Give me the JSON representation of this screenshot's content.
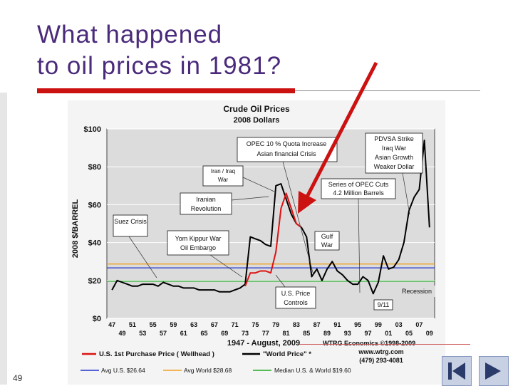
{
  "slide": {
    "title_line1": "What happened",
    "title_line2": "to oil prices in 1981?",
    "page_number": "49"
  },
  "chart_data": {
    "type": "line",
    "title": "Crude Oil Prices",
    "subtitle": "2008 Dollars",
    "ylabel": "2008 $/BARREL",
    "xlabel": "1947 - August, 2009",
    "credit": "WTRG Economics ©1998-2009",
    "credit_web": "www.wtrg.com",
    "credit_phone": "(479) 293-4081",
    "ylim": [
      0,
      100
    ],
    "xlim": [
      1946,
      2010
    ],
    "y_ticks": [
      "$0",
      "$20",
      "$40",
      "$60",
      "$80",
      "$100"
    ],
    "x_ticks_top": [
      "47",
      "51",
      "55",
      "59",
      "63",
      "67",
      "71",
      "75",
      "79",
      "83",
      "87",
      "91",
      "95",
      "99",
      "03",
      "07"
    ],
    "x_ticks_bottom": [
      "49",
      "53",
      "57",
      "61",
      "65",
      "69",
      "73",
      "77",
      "81",
      "85",
      "89",
      "93",
      "97",
      "01",
      "05",
      "09"
    ],
    "series": [
      {
        "name": "U.S. 1st Purchase Price ( Wellhead )",
        "color": "#dd1111",
        "x": [
          1973,
          1974,
          1975,
          1976,
          1977,
          1978,
          1979,
          1980,
          1981,
          1982,
          1983,
          1984
        ],
        "y": [
          17,
          24,
          24,
          25,
          25,
          24,
          35,
          58,
          66,
          58,
          50,
          48
        ]
      },
      {
        "name": "\"World Price\" *",
        "color": "#000000",
        "x": [
          1947,
          1948,
          1949,
          1950,
          1951,
          1952,
          1953,
          1954,
          1955,
          1956,
          1957,
          1958,
          1959,
          1960,
          1961,
          1962,
          1963,
          1964,
          1965,
          1966,
          1967,
          1968,
          1969,
          1970,
          1971,
          1972,
          1973,
          1974,
          1975,
          1976,
          1977,
          1978,
          1979,
          1980,
          1981,
          1982,
          1983,
          1984,
          1985,
          1986,
          1987,
          1988,
          1989,
          1990,
          1991,
          1992,
          1993,
          1994,
          1995,
          1996,
          1997,
          1998,
          1999,
          2000,
          2001,
          2002,
          2003,
          2004,
          2005,
          2006,
          2007,
          2008,
          2009
        ],
        "y": [
          15,
          20,
          19,
          18,
          17,
          17,
          18,
          18,
          18,
          17,
          19,
          18,
          17,
          17,
          16,
          16,
          16,
          15,
          15,
          15,
          15,
          14,
          14,
          14,
          15,
          16,
          18,
          43,
          42,
          41,
          39,
          38,
          70,
          71,
          63,
          55,
          50,
          48,
          43,
          22,
          26,
          20,
          26,
          30,
          25,
          23,
          20,
          18,
          18,
          22,
          20,
          13,
          19,
          33,
          26,
          27,
          31,
          40,
          57,
          64,
          68,
          94,
          48
        ]
      }
    ],
    "reference_lines": [
      {
        "name": "Avg U.S. $26.64",
        "color": "#2233cc",
        "value": 26.64
      },
      {
        "name": "Avg World $28.68",
        "color": "#f0a020",
        "value": 28.68
      },
      {
        "name": "Median U.S. & World $19.60",
        "color": "#22aa22",
        "value": 19.6
      }
    ],
    "annotations": {
      "suez": "Suez Crisis",
      "yom_kippur_line1": "Yom Kippur War",
      "yom_kippur_line2": "Oil Embargo",
      "iranian_line1": "Iranian",
      "iranian_line2": "Revolution",
      "iran_iraq_line1": "Iran / Iraq",
      "iran_iraq_line2": "War",
      "opec_quota_line1": "OPEC 10 % Quota Increase",
      "opec_quota_line2": "Asian financial Crisis",
      "opec_cuts_line1": "Series of OPEC Cuts",
      "opec_cuts_line2": "4.2 Million Barrels",
      "gulf_line1": "Gulf",
      "gulf_line2": "War",
      "us_controls_line1": "U.S. Price",
      "us_controls_line2": "Controls",
      "nine_eleven": "9/11",
      "recession": "Recession",
      "pdvsa_line1": "PDVSA Strike",
      "pdvsa_line2": "Iraq War",
      "pdvsa_line3": "Asian Growth",
      "pdvsa_line4": "Weaker Dollar"
    }
  }
}
